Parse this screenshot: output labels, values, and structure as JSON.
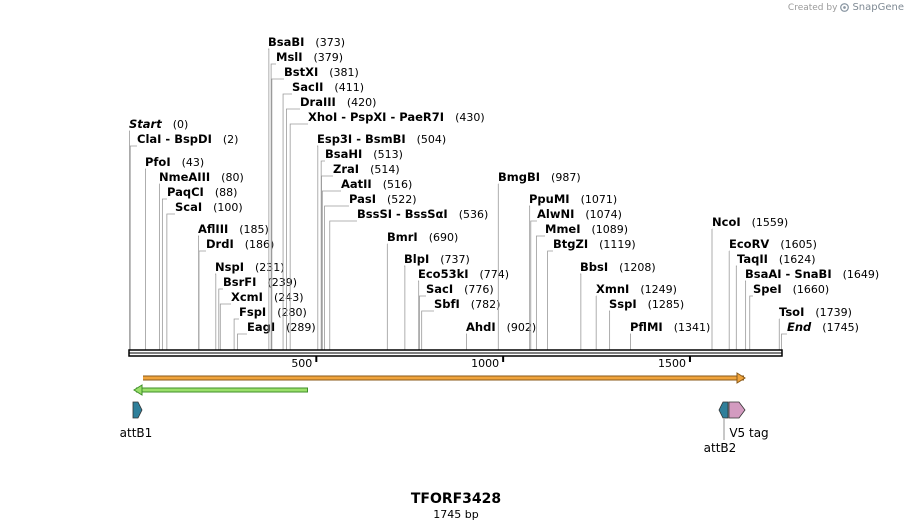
{
  "credit": {
    "prefix": "Created by",
    "brand": "SnapGene"
  },
  "map_title": "TFORF3428",
  "map_length": "1745 bp",
  "sequence_length": 1745,
  "ruler": [
    500,
    1000,
    1500
  ],
  "enzymes": [
    {
      "name": "Start",
      "pos": 0,
      "pos_label": "(0)",
      "italic": true
    },
    {
      "name": "ClaI  -  BspDI",
      "pos": 2,
      "pos_label": "(2)"
    },
    {
      "name": "PfoI",
      "pos": 43,
      "pos_label": "(43)"
    },
    {
      "name": "NmeAIII",
      "pos": 80,
      "pos_label": "(80)"
    },
    {
      "name": "PaqCI",
      "pos": 88,
      "pos_label": "(88)"
    },
    {
      "name": "ScaI",
      "pos": 100,
      "pos_label": "(100)"
    },
    {
      "name": "AflIII",
      "pos": 185,
      "pos_label": "(185)"
    },
    {
      "name": "DrdI",
      "pos": 186,
      "pos_label": "(186)"
    },
    {
      "name": "NspI",
      "pos": 231,
      "pos_label": "(231)"
    },
    {
      "name": "BsrFI",
      "pos": 239,
      "pos_label": "(239)"
    },
    {
      "name": "XcmI",
      "pos": 243,
      "pos_label": "(243)"
    },
    {
      "name": "FspI",
      "pos": 280,
      "pos_label": "(280)"
    },
    {
      "name": "EagI",
      "pos": 289,
      "pos_label": "(289)"
    },
    {
      "name": "BsaBI",
      "pos": 373,
      "pos_label": "(373)"
    },
    {
      "name": "MslI",
      "pos": 379,
      "pos_label": "(379)"
    },
    {
      "name": "BstXI",
      "pos": 381,
      "pos_label": "(381)"
    },
    {
      "name": "SacII",
      "pos": 411,
      "pos_label": "(411)"
    },
    {
      "name": "DraIII",
      "pos": 420,
      "pos_label": "(420)"
    },
    {
      "name": "XhoI  -  PspXI  -  PaeR7I",
      "pos": 430,
      "pos_label": "(430)"
    },
    {
      "name": "Esp3I  -  BsmBI",
      "pos": 504,
      "pos_label": "(504)"
    },
    {
      "name": "BsaHI",
      "pos": 513,
      "pos_label": "(513)"
    },
    {
      "name": "ZraI",
      "pos": 514,
      "pos_label": "(514)"
    },
    {
      "name": "AatII",
      "pos": 516,
      "pos_label": "(516)"
    },
    {
      "name": "PasI",
      "pos": 522,
      "pos_label": "(522)"
    },
    {
      "name": "BssSI  -  BssSαI",
      "pos": 536,
      "pos_label": "(536)"
    },
    {
      "name": "BmrI",
      "pos": 690,
      "pos_label": "(690)"
    },
    {
      "name": "BlpI",
      "pos": 737,
      "pos_label": "(737)"
    },
    {
      "name": "Eco53kI",
      "pos": 774,
      "pos_label": "(774)"
    },
    {
      "name": "SacI",
      "pos": 776,
      "pos_label": "(776)"
    },
    {
      "name": "SbfI",
      "pos": 782,
      "pos_label": "(782)"
    },
    {
      "name": "AhdI",
      "pos": 902,
      "pos_label": "(902)"
    },
    {
      "name": "BmgBI",
      "pos": 987,
      "pos_label": "(987)"
    },
    {
      "name": "PpuMI",
      "pos": 1071,
      "pos_label": "(1071)"
    },
    {
      "name": "AlwNI",
      "pos": 1074,
      "pos_label": "(1074)"
    },
    {
      "name": "MmeI",
      "pos": 1089,
      "pos_label": "(1089)"
    },
    {
      "name": "BtgZI",
      "pos": 1119,
      "pos_label": "(1119)"
    },
    {
      "name": "BbsI",
      "pos": 1208,
      "pos_label": "(1208)"
    },
    {
      "name": "XmnI",
      "pos": 1249,
      "pos_label": "(1249)"
    },
    {
      "name": "SspI",
      "pos": 1285,
      "pos_label": "(1285)"
    },
    {
      "name": "PflMI",
      "pos": 1341,
      "pos_label": "(1341)"
    },
    {
      "name": "NcoI",
      "pos": 1559,
      "pos_label": "(1559)"
    },
    {
      "name": "EcoRV",
      "pos": 1605,
      "pos_label": "(1605)"
    },
    {
      "name": "TaqII",
      "pos": 1624,
      "pos_label": "(1624)"
    },
    {
      "name": "BsaAI  -  SnaBI",
      "pos": 1649,
      "pos_label": "(1649)"
    },
    {
      "name": "SpeI",
      "pos": 1660,
      "pos_label": "(1660)"
    },
    {
      "name": "TsoI",
      "pos": 1739,
      "pos_label": "(1739)"
    },
    {
      "name": "End",
      "pos": 1745,
      "pos_label": "(1745)",
      "italic": true
    }
  ],
  "orf_colors": {
    "forward": "#f0a43c",
    "forward_stroke": "#8a5a1a",
    "reverse": "#9be06a",
    "reverse_stroke": "#3f8f2a"
  },
  "features": [
    {
      "label": "attB1",
      "pos": 5,
      "color": "#2f7f9a",
      "dir": "forward"
    },
    {
      "label": "attB2",
      "pos": 1555,
      "color": "#2f7f9a",
      "dir": "reverse"
    },
    {
      "label": "V5 tag",
      "pos": 1595,
      "color": "#d39bc0",
      "dir": "forward"
    }
  ]
}
